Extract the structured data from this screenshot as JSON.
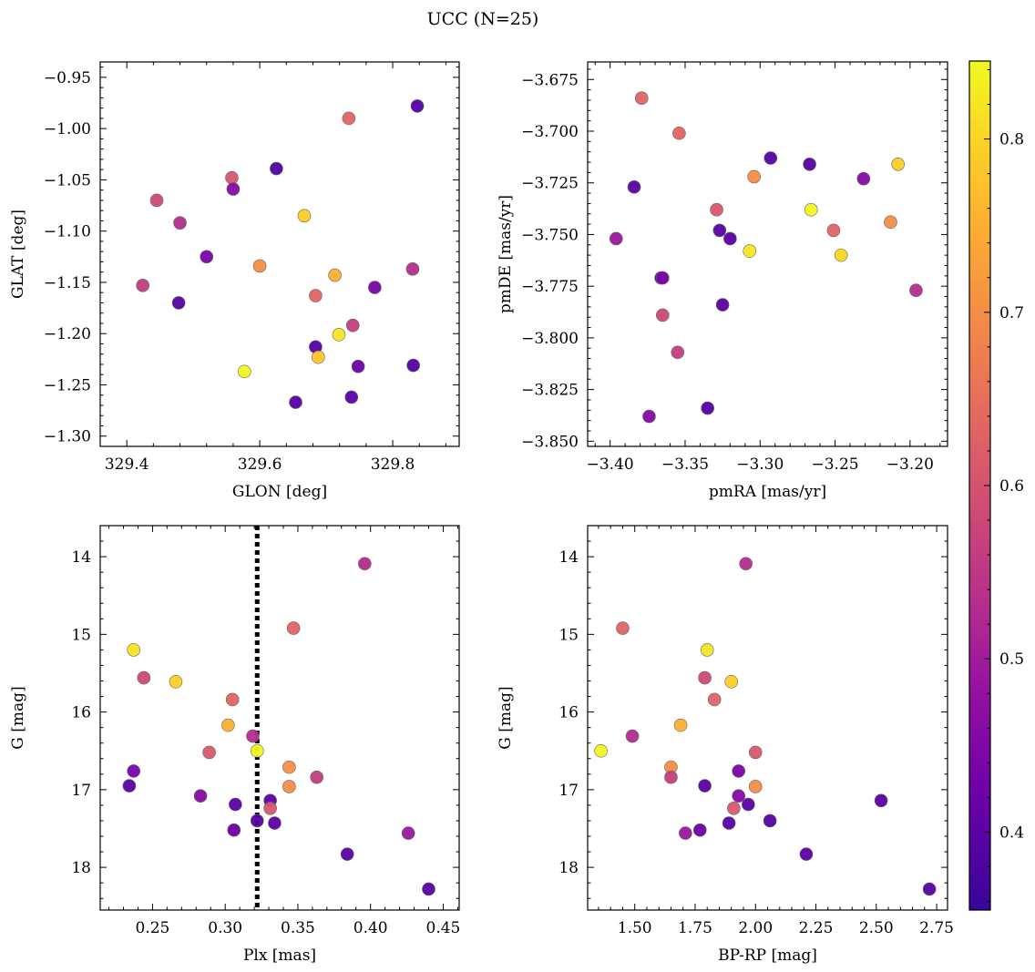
{
  "figure": {
    "title": "UCC (N=25)"
  },
  "colorbar": {
    "min": 0.355,
    "max": 0.845,
    "ticks": [
      0.4,
      0.5,
      0.6,
      0.7,
      0.8
    ],
    "tick_labels": [
      "0.4",
      "0.5",
      "0.6",
      "0.7",
      "0.8"
    ],
    "colormap": "plasma"
  },
  "chart_data": [
    {
      "type": "scatter",
      "name": "position",
      "xlabel": "GLON [deg]",
      "ylabel": "GLAT [deg]",
      "xlim": [
        329.36,
        329.9
      ],
      "ylim": [
        -1.31,
        -0.935
      ],
      "inverted_y": false,
      "xticks": [
        329.4,
        329.6,
        329.8
      ],
      "xtick_labels": [
        "329.4",
        "329.6",
        "329.8"
      ],
      "yticks": [
        -1.3,
        -1.25,
        -1.2,
        -1.15,
        -1.1,
        -1.05,
        -1.0,
        -0.95
      ],
      "ytick_labels": [
        "−1.30",
        "−1.25",
        "−1.20",
        "−1.15",
        "−1.10",
        "−1.05",
        "−1.00",
        "−0.95"
      ],
      "vline": null,
      "points": [
        {
          "x": 329.837,
          "y": -0.978,
          "c": 0.39
        },
        {
          "x": 329.734,
          "y": -0.99,
          "c": 0.63
        },
        {
          "x": 329.625,
          "y": -1.039,
          "c": 0.38
        },
        {
          "x": 329.558,
          "y": -1.048,
          "c": 0.61
        },
        {
          "x": 329.56,
          "y": -1.059,
          "c": 0.46
        },
        {
          "x": 329.445,
          "y": -1.07,
          "c": 0.58
        },
        {
          "x": 329.667,
          "y": -1.085,
          "c": 0.79
        },
        {
          "x": 329.48,
          "y": -1.092,
          "c": 0.53
        },
        {
          "x": 329.52,
          "y": -1.125,
          "c": 0.44
        },
        {
          "x": 329.6,
          "y": -1.134,
          "c": 0.7
        },
        {
          "x": 329.83,
          "y": -1.137,
          "c": 0.53
        },
        {
          "x": 329.713,
          "y": -1.143,
          "c": 0.75
        },
        {
          "x": 329.424,
          "y": -1.153,
          "c": 0.56
        },
        {
          "x": 329.773,
          "y": -1.155,
          "c": 0.44
        },
        {
          "x": 329.684,
          "y": -1.163,
          "c": 0.63
        },
        {
          "x": 329.478,
          "y": -1.17,
          "c": 0.39
        },
        {
          "x": 329.74,
          "y": -1.192,
          "c": 0.56
        },
        {
          "x": 329.719,
          "y": -1.201,
          "c": 0.82
        },
        {
          "x": 329.684,
          "y": -1.213,
          "c": 0.39
        },
        {
          "x": 329.688,
          "y": -1.223,
          "c": 0.78
        },
        {
          "x": 329.831,
          "y": -1.231,
          "c": 0.39
        },
        {
          "x": 329.748,
          "y": -1.232,
          "c": 0.42
        },
        {
          "x": 329.577,
          "y": -1.237,
          "c": 0.84
        },
        {
          "x": 329.738,
          "y": -1.262,
          "c": 0.4
        },
        {
          "x": 329.654,
          "y": -1.267,
          "c": 0.4
        }
      ]
    },
    {
      "type": "scatter",
      "name": "proper-motion",
      "xlabel": "pmRA [mas/yr]",
      "ylabel": "pmDE [mas/yr]",
      "xlim": [
        -3.415,
        -3.175
      ],
      "ylim": [
        -3.8525,
        -3.6665
      ],
      "inverted_y": false,
      "xticks": [
        -3.4,
        -3.35,
        -3.3,
        -3.25,
        -3.2
      ],
      "xtick_labels": [
        "−3.40",
        "−3.35",
        "−3.30",
        "−3.25",
        "−3.20"
      ],
      "yticks": [
        -3.85,
        -3.825,
        -3.8,
        -3.775,
        -3.75,
        -3.725,
        -3.7,
        -3.675
      ],
      "ytick_labels": [
        "−3.850",
        "−3.825",
        "−3.800",
        "−3.775",
        "−3.750",
        "−3.725",
        "−3.700",
        "−3.675"
      ],
      "vline": null,
      "points": [
        {
          "x": -3.379,
          "y": -3.684,
          "c": 0.63
        },
        {
          "x": -3.354,
          "y": -3.701,
          "c": 0.63
        },
        {
          "x": -3.293,
          "y": -3.713,
          "c": 0.39
        },
        {
          "x": -3.267,
          "y": -3.716,
          "c": 0.4
        },
        {
          "x": -3.208,
          "y": -3.716,
          "c": 0.79
        },
        {
          "x": -3.304,
          "y": -3.722,
          "c": 0.7
        },
        {
          "x": -3.231,
          "y": -3.723,
          "c": 0.46
        },
        {
          "x": -3.384,
          "y": -3.727,
          "c": 0.4
        },
        {
          "x": -3.329,
          "y": -3.738,
          "c": 0.61
        },
        {
          "x": -3.266,
          "y": -3.738,
          "c": 0.84
        },
        {
          "x": -3.213,
          "y": -3.744,
          "c": 0.7
        },
        {
          "x": -3.327,
          "y": -3.748,
          "c": 0.4
        },
        {
          "x": -3.251,
          "y": -3.748,
          "c": 0.63
        },
        {
          "x": -3.32,
          "y": -3.752,
          "c": 0.4
        },
        {
          "x": -3.396,
          "y": -3.752,
          "c": 0.49
        },
        {
          "x": -3.307,
          "y": -3.758,
          "c": 0.82
        },
        {
          "x": -3.246,
          "y": -3.76,
          "c": 0.8
        },
        {
          "x": -3.366,
          "y": -3.771,
          "c": 0.4
        },
        {
          "x": -3.365,
          "y": -3.771,
          "c": 0.44
        },
        {
          "x": -3.196,
          "y": -3.777,
          "c": 0.53
        },
        {
          "x": -3.325,
          "y": -3.784,
          "c": 0.4
        },
        {
          "x": -3.365,
          "y": -3.789,
          "c": 0.58
        },
        {
          "x": -3.355,
          "y": -3.807,
          "c": 0.56
        },
        {
          "x": -3.335,
          "y": -3.834,
          "c": 0.39
        },
        {
          "x": -3.374,
          "y": -3.838,
          "c": 0.46
        }
      ]
    },
    {
      "type": "scatter",
      "name": "plx-vs-g",
      "xlabel": "Plx [mas]",
      "ylabel": "G [mag]",
      "xlim": [
        0.214,
        0.461
      ],
      "ylim": [
        18.55,
        13.6
      ],
      "inverted_y": true,
      "xticks": [
        0.25,
        0.3,
        0.35,
        0.4,
        0.45
      ],
      "xtick_labels": [
        "0.25",
        "0.30",
        "0.35",
        "0.40",
        "0.45"
      ],
      "yticks": [
        14,
        15,
        16,
        17,
        18
      ],
      "ytick_labels": [
        "14",
        "15",
        "16",
        "17",
        "18"
      ],
      "vline": 0.322,
      "points": [
        {
          "x": 0.396,
          "y": 14.09,
          "c": 0.53
        },
        {
          "x": 0.347,
          "y": 14.92,
          "c": 0.63
        },
        {
          "x": 0.237,
          "y": 15.2,
          "c": 0.82
        },
        {
          "x": 0.244,
          "y": 15.56,
          "c": 0.58
        },
        {
          "x": 0.266,
          "y": 15.61,
          "c": 0.79
        },
        {
          "x": 0.305,
          "y": 15.84,
          "c": 0.63
        },
        {
          "x": 0.302,
          "y": 16.17,
          "c": 0.75
        },
        {
          "x": 0.319,
          "y": 16.31,
          "c": 0.53
        },
        {
          "x": 0.322,
          "y": 16.5,
          "c": 0.84
        },
        {
          "x": 0.289,
          "y": 16.52,
          "c": 0.61
        },
        {
          "x": 0.344,
          "y": 16.71,
          "c": 0.7
        },
        {
          "x": 0.237,
          "y": 16.76,
          "c": 0.44
        },
        {
          "x": 0.363,
          "y": 16.84,
          "c": 0.56
        },
        {
          "x": 0.234,
          "y": 16.95,
          "c": 0.4
        },
        {
          "x": 0.344,
          "y": 16.96,
          "c": 0.7
        },
        {
          "x": 0.283,
          "y": 17.08,
          "c": 0.46
        },
        {
          "x": 0.331,
          "y": 17.14,
          "c": 0.4
        },
        {
          "x": 0.307,
          "y": 17.19,
          "c": 0.4
        },
        {
          "x": 0.331,
          "y": 17.24,
          "c": 0.61
        },
        {
          "x": 0.322,
          "y": 17.4,
          "c": 0.39
        },
        {
          "x": 0.334,
          "y": 17.43,
          "c": 0.4
        },
        {
          "x": 0.306,
          "y": 17.52,
          "c": 0.42
        },
        {
          "x": 0.426,
          "y": 17.56,
          "c": 0.49
        },
        {
          "x": 0.384,
          "y": 17.83,
          "c": 0.4
        },
        {
          "x": 0.44,
          "y": 18.28,
          "c": 0.39
        }
      ]
    },
    {
      "type": "scatter",
      "name": "cmd",
      "xlabel": "BP-RP [mag]",
      "ylabel": "G [mag]",
      "xlim": [
        1.305,
        2.795
      ],
      "ylim": [
        18.55,
        13.6
      ],
      "inverted_y": true,
      "xticks": [
        1.5,
        1.75,
        2.0,
        2.25,
        2.5,
        2.75
      ],
      "xtick_labels": [
        "1.50",
        "1.75",
        "2.00",
        "2.25",
        "2.50",
        "2.75"
      ],
      "yticks": [
        14,
        15,
        16,
        17,
        18
      ],
      "ytick_labels": [
        "14",
        "15",
        "16",
        "17",
        "18"
      ],
      "vline": null,
      "points": [
        {
          "x": 1.96,
          "y": 14.09,
          "c": 0.53
        },
        {
          "x": 1.45,
          "y": 14.92,
          "c": 0.63
        },
        {
          "x": 1.8,
          "y": 15.2,
          "c": 0.82
        },
        {
          "x": 1.79,
          "y": 15.56,
          "c": 0.58
        },
        {
          "x": 1.9,
          "y": 15.61,
          "c": 0.79
        },
        {
          "x": 1.83,
          "y": 15.84,
          "c": 0.63
        },
        {
          "x": 1.69,
          "y": 16.17,
          "c": 0.75
        },
        {
          "x": 1.49,
          "y": 16.31,
          "c": 0.53
        },
        {
          "x": 1.36,
          "y": 16.5,
          "c": 0.84
        },
        {
          "x": 2.0,
          "y": 16.52,
          "c": 0.61
        },
        {
          "x": 1.65,
          "y": 16.71,
          "c": 0.7
        },
        {
          "x": 1.93,
          "y": 16.76,
          "c": 0.44
        },
        {
          "x": 1.65,
          "y": 16.84,
          "c": 0.56
        },
        {
          "x": 1.79,
          "y": 16.95,
          "c": 0.4
        },
        {
          "x": 2.0,
          "y": 16.96,
          "c": 0.7
        },
        {
          "x": 1.93,
          "y": 17.08,
          "c": 0.46
        },
        {
          "x": 2.52,
          "y": 17.14,
          "c": 0.4
        },
        {
          "x": 1.97,
          "y": 17.19,
          "c": 0.4
        },
        {
          "x": 1.91,
          "y": 17.24,
          "c": 0.61
        },
        {
          "x": 2.06,
          "y": 17.4,
          "c": 0.39
        },
        {
          "x": 1.89,
          "y": 17.43,
          "c": 0.4
        },
        {
          "x": 1.77,
          "y": 17.52,
          "c": 0.42
        },
        {
          "x": 1.71,
          "y": 17.56,
          "c": 0.49
        },
        {
          "x": 2.21,
          "y": 17.83,
          "c": 0.4
        },
        {
          "x": 2.72,
          "y": 18.28,
          "c": 0.39
        }
      ]
    }
  ]
}
